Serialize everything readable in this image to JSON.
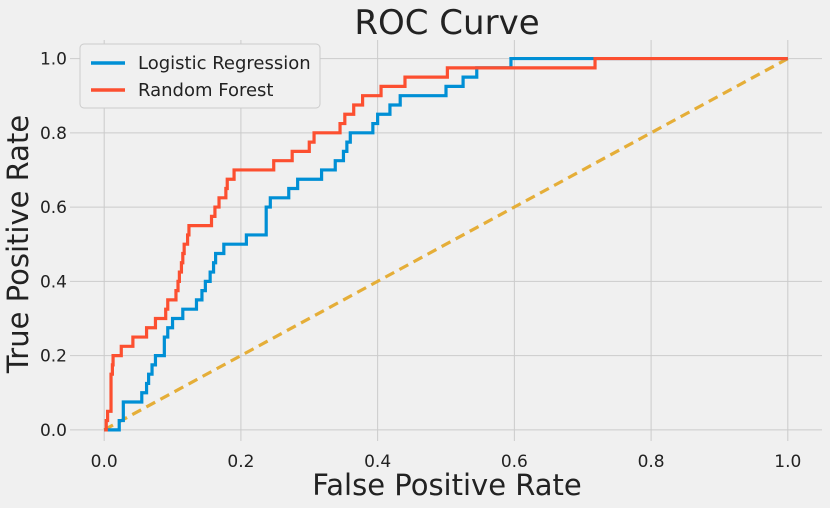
{
  "chart_data": {
    "type": "line",
    "title": "ROC Curve",
    "xlabel": "False Positive Rate",
    "ylabel": "True Positive Rate",
    "xlim": [
      -0.05,
      1.05
    ],
    "ylim": [
      -0.03,
      1.05
    ],
    "xticks": [
      0.0,
      0.2,
      0.4,
      0.6,
      0.8,
      1.0
    ],
    "yticks": [
      0.0,
      0.2,
      0.4,
      0.6,
      0.8,
      1.0
    ],
    "xtick_labels": [
      "0.0",
      "0.2",
      "0.4",
      "0.6",
      "0.8",
      "1.0"
    ],
    "ytick_labels": [
      "0.0",
      "0.2",
      "0.4",
      "0.6",
      "0.8",
      "1.0"
    ],
    "grid": true,
    "legend_position": "top-left",
    "series": [
      {
        "name": "Logistic Regression",
        "color": "#008fd5",
        "style": "step",
        "points": [
          [
            0,
            0
          ],
          [
            0.022,
            0
          ],
          [
            0.022,
            0.025
          ],
          [
            0.028,
            0.025
          ],
          [
            0.028,
            0.05
          ],
          [
            0.028,
            0.075
          ],
          [
            0.055,
            0.075
          ],
          [
            0.055,
            0.1
          ],
          [
            0.062,
            0.1
          ],
          [
            0.062,
            0.125
          ],
          [
            0.065,
            0.125
          ],
          [
            0.065,
            0.15
          ],
          [
            0.07,
            0.15
          ],
          [
            0.07,
            0.175
          ],
          [
            0.075,
            0.175
          ],
          [
            0.075,
            0.2
          ],
          [
            0.088,
            0.2
          ],
          [
            0.088,
            0.25
          ],
          [
            0.093,
            0.25
          ],
          [
            0.093,
            0.275
          ],
          [
            0.1,
            0.275
          ],
          [
            0.1,
            0.3
          ],
          [
            0.115,
            0.3
          ],
          [
            0.115,
            0.325
          ],
          [
            0.135,
            0.325
          ],
          [
            0.135,
            0.35
          ],
          [
            0.143,
            0.35
          ],
          [
            0.143,
            0.375
          ],
          [
            0.148,
            0.375
          ],
          [
            0.148,
            0.4
          ],
          [
            0.155,
            0.4
          ],
          [
            0.155,
            0.425
          ],
          [
            0.16,
            0.425
          ],
          [
            0.16,
            0.45
          ],
          [
            0.163,
            0.45
          ],
          [
            0.163,
            0.475
          ],
          [
            0.175,
            0.475
          ],
          [
            0.175,
            0.5
          ],
          [
            0.208,
            0.5
          ],
          [
            0.208,
            0.525
          ],
          [
            0.237,
            0.525
          ],
          [
            0.237,
            0.6
          ],
          [
            0.243,
            0.6
          ],
          [
            0.243,
            0.625
          ],
          [
            0.27,
            0.625
          ],
          [
            0.27,
            0.65
          ],
          [
            0.283,
            0.65
          ],
          [
            0.283,
            0.675
          ],
          [
            0.318,
            0.675
          ],
          [
            0.318,
            0.7
          ],
          [
            0.338,
            0.7
          ],
          [
            0.338,
            0.725
          ],
          [
            0.35,
            0.725
          ],
          [
            0.35,
            0.75
          ],
          [
            0.355,
            0.75
          ],
          [
            0.355,
            0.775
          ],
          [
            0.36,
            0.775
          ],
          [
            0.36,
            0.8
          ],
          [
            0.393,
            0.8
          ],
          [
            0.393,
            0.825
          ],
          [
            0.4,
            0.825
          ],
          [
            0.4,
            0.85
          ],
          [
            0.418,
            0.85
          ],
          [
            0.418,
            0.875
          ],
          [
            0.433,
            0.875
          ],
          [
            0.433,
            0.9
          ],
          [
            0.5,
            0.9
          ],
          [
            0.5,
            0.925
          ],
          [
            0.525,
            0.925
          ],
          [
            0.525,
            0.95
          ],
          [
            0.545,
            0.95
          ],
          [
            0.545,
            0.975
          ],
          [
            0.595,
            0.975
          ],
          [
            0.595,
            1.0
          ],
          [
            1.0,
            1.0
          ]
        ]
      },
      {
        "name": "Random Forest",
        "color": "#fc4f30",
        "style": "step",
        "points": [
          [
            0,
            0
          ],
          [
            0.003,
            0
          ],
          [
            0.003,
            0.025
          ],
          [
            0.005,
            0.025
          ],
          [
            0.005,
            0.05
          ],
          [
            0.01,
            0.05
          ],
          [
            0.01,
            0.15
          ],
          [
            0.012,
            0.15
          ],
          [
            0.012,
            0.175
          ],
          [
            0.013,
            0.175
          ],
          [
            0.013,
            0.2
          ],
          [
            0.025,
            0.2
          ],
          [
            0.025,
            0.225
          ],
          [
            0.042,
            0.225
          ],
          [
            0.042,
            0.25
          ],
          [
            0.062,
            0.25
          ],
          [
            0.062,
            0.275
          ],
          [
            0.075,
            0.275
          ],
          [
            0.075,
            0.3
          ],
          [
            0.09,
            0.3
          ],
          [
            0.09,
            0.325
          ],
          [
            0.093,
            0.325
          ],
          [
            0.093,
            0.35
          ],
          [
            0.105,
            0.35
          ],
          [
            0.105,
            0.375
          ],
          [
            0.108,
            0.375
          ],
          [
            0.108,
            0.4
          ],
          [
            0.11,
            0.4
          ],
          [
            0.11,
            0.425
          ],
          [
            0.113,
            0.425
          ],
          [
            0.113,
            0.45
          ],
          [
            0.115,
            0.45
          ],
          [
            0.115,
            0.475
          ],
          [
            0.117,
            0.475
          ],
          [
            0.117,
            0.5
          ],
          [
            0.122,
            0.5
          ],
          [
            0.122,
            0.525
          ],
          [
            0.124,
            0.525
          ],
          [
            0.124,
            0.55
          ],
          [
            0.157,
            0.55
          ],
          [
            0.157,
            0.575
          ],
          [
            0.162,
            0.575
          ],
          [
            0.162,
            0.6
          ],
          [
            0.168,
            0.6
          ],
          [
            0.168,
            0.625
          ],
          [
            0.178,
            0.625
          ],
          [
            0.178,
            0.65
          ],
          [
            0.18,
            0.65
          ],
          [
            0.18,
            0.675
          ],
          [
            0.19,
            0.675
          ],
          [
            0.19,
            0.7
          ],
          [
            0.248,
            0.7
          ],
          [
            0.248,
            0.725
          ],
          [
            0.275,
            0.725
          ],
          [
            0.275,
            0.75
          ],
          [
            0.3,
            0.75
          ],
          [
            0.3,
            0.775
          ],
          [
            0.307,
            0.775
          ],
          [
            0.307,
            0.8
          ],
          [
            0.345,
            0.8
          ],
          [
            0.345,
            0.825
          ],
          [
            0.352,
            0.825
          ],
          [
            0.352,
            0.85
          ],
          [
            0.365,
            0.85
          ],
          [
            0.365,
            0.875
          ],
          [
            0.378,
            0.875
          ],
          [
            0.378,
            0.9
          ],
          [
            0.405,
            0.9
          ],
          [
            0.405,
            0.925
          ],
          [
            0.44,
            0.925
          ],
          [
            0.44,
            0.95
          ],
          [
            0.502,
            0.95
          ],
          [
            0.502,
            0.975
          ],
          [
            0.718,
            0.975
          ],
          [
            0.718,
            1.0
          ],
          [
            1.0,
            1.0
          ]
        ]
      },
      {
        "name": "",
        "color": "#e5ae38",
        "style": "dashed",
        "points": [
          [
            0,
            0
          ],
          [
            1,
            1
          ]
        ]
      }
    ]
  }
}
